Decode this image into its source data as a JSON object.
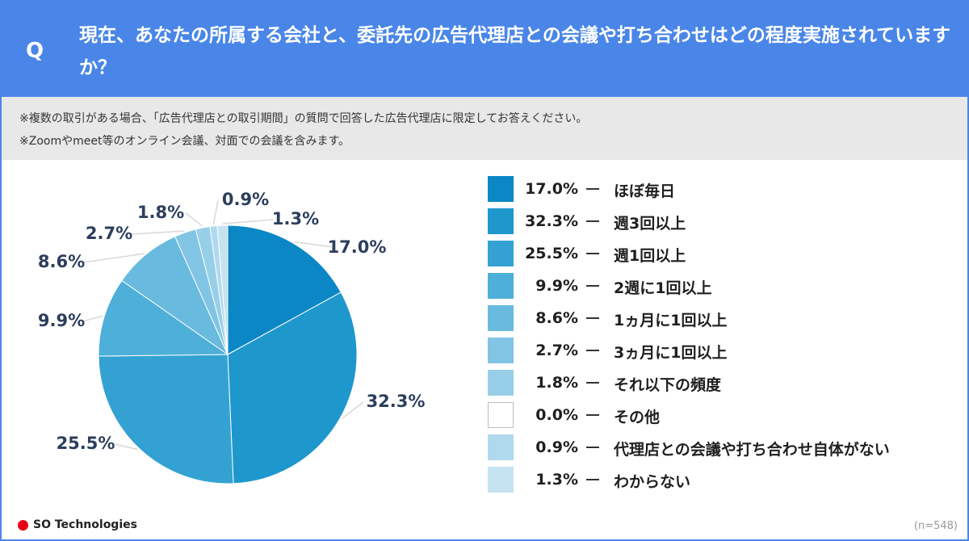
{
  "header": {
    "q_mark": "Q",
    "question": "現在、あなたの所属する会社と、委託先の広告代理店との会議や打ち合わせはどの程度実施されていますか？"
  },
  "notes": [
    "※複数の取引がある場合、「広告代理店との取引期間」の質問で回答した広告代理店に限定してお答えください。",
    "※Zoomやmeet等のオンライン会議、対面での会議を含みます。"
  ],
  "footer": {
    "logo_text": "SO Technologies",
    "n": "(n=548)"
  },
  "colors": {
    "header_bg": "#4a86e8",
    "note_bg": "#e8e8e8",
    "logo_red": "#e60012"
  },
  "chart_data": {
    "type": "pie",
    "start_angle_deg": 0,
    "direction": "clockwise",
    "slices": [
      {
        "label": "ほぼ毎日",
        "value": 17.0,
        "pct_text": "17.0%",
        "color": "#0b87c6"
      },
      {
        "label": "週3回以上",
        "value": 32.3,
        "pct_text": "32.3%",
        "color": "#1e97cd"
      },
      {
        "label": "週1回以上",
        "value": 25.5,
        "pct_text": "25.5%",
        "color": "#33a2d3"
      },
      {
        "label": "2週に1回以上",
        "value": 9.9,
        "pct_text": "9.9%",
        "color": "#4eafd9"
      },
      {
        "label": "1ヵ月に1回以上",
        "value": 8.6,
        "pct_text": "8.6%",
        "color": "#68bade"
      },
      {
        "label": "3ヵ月に1回以上",
        "value": 2.7,
        "pct_text": "2.7%",
        "color": "#82c4e3"
      },
      {
        "label": "それ以下の頻度",
        "value": 1.8,
        "pct_text": "1.8%",
        "color": "#98cfe8"
      },
      {
        "label": "その他",
        "value": 0.0,
        "pct_text": "0.0%",
        "color": "#ffffff"
      },
      {
        "label": "代理店との会議や打ち合わせ自体がない",
        "value": 0.9,
        "pct_text": "0.9%",
        "color": "#b0d9ee"
      },
      {
        "label": "わからない",
        "value": 1.3,
        "pct_text": "1.3%",
        "color": "#c6e3f1"
      }
    ]
  }
}
